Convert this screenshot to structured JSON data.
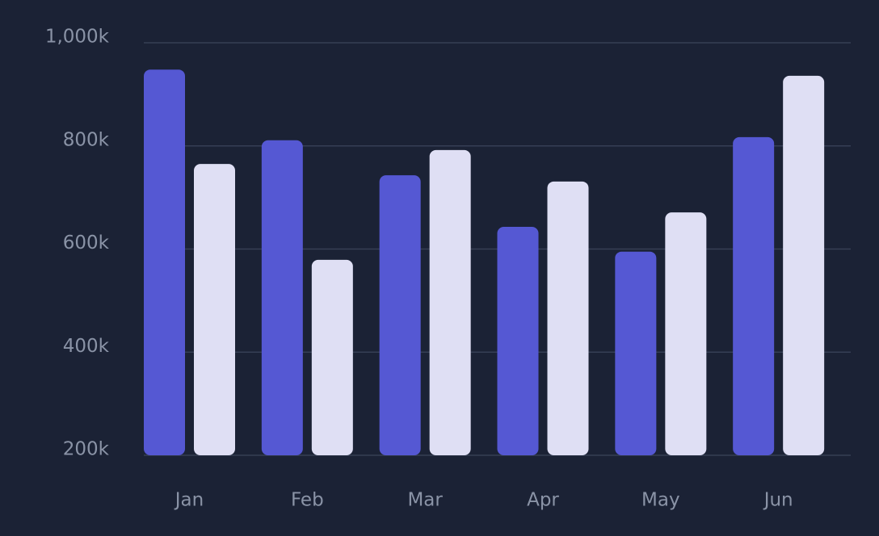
{
  "chart_data": {
    "type": "bar",
    "categories": [
      "Jan",
      "Feb",
      "Mar",
      "Apr",
      "May",
      "Jun"
    ],
    "series": [
      {
        "color": "#5558d3",
        "values": [
          948000,
          811000,
          743000,
          643000,
          595000,
          817000
        ]
      },
      {
        "color": "#dfdff4",
        "values": [
          765000,
          579000,
          792000,
          731000,
          671000,
          936000
        ]
      }
    ],
    "ylim": [
      200000,
      1000000
    ],
    "yticks": [
      {
        "value": 200000,
        "label": "200k"
      },
      {
        "value": 400000,
        "label": "400k"
      },
      {
        "value": 600000,
        "label": "600k"
      },
      {
        "value": 800000,
        "label": "800k"
      },
      {
        "value": 1000000,
        "label": "1,000k"
      }
    ],
    "grid": true
  }
}
